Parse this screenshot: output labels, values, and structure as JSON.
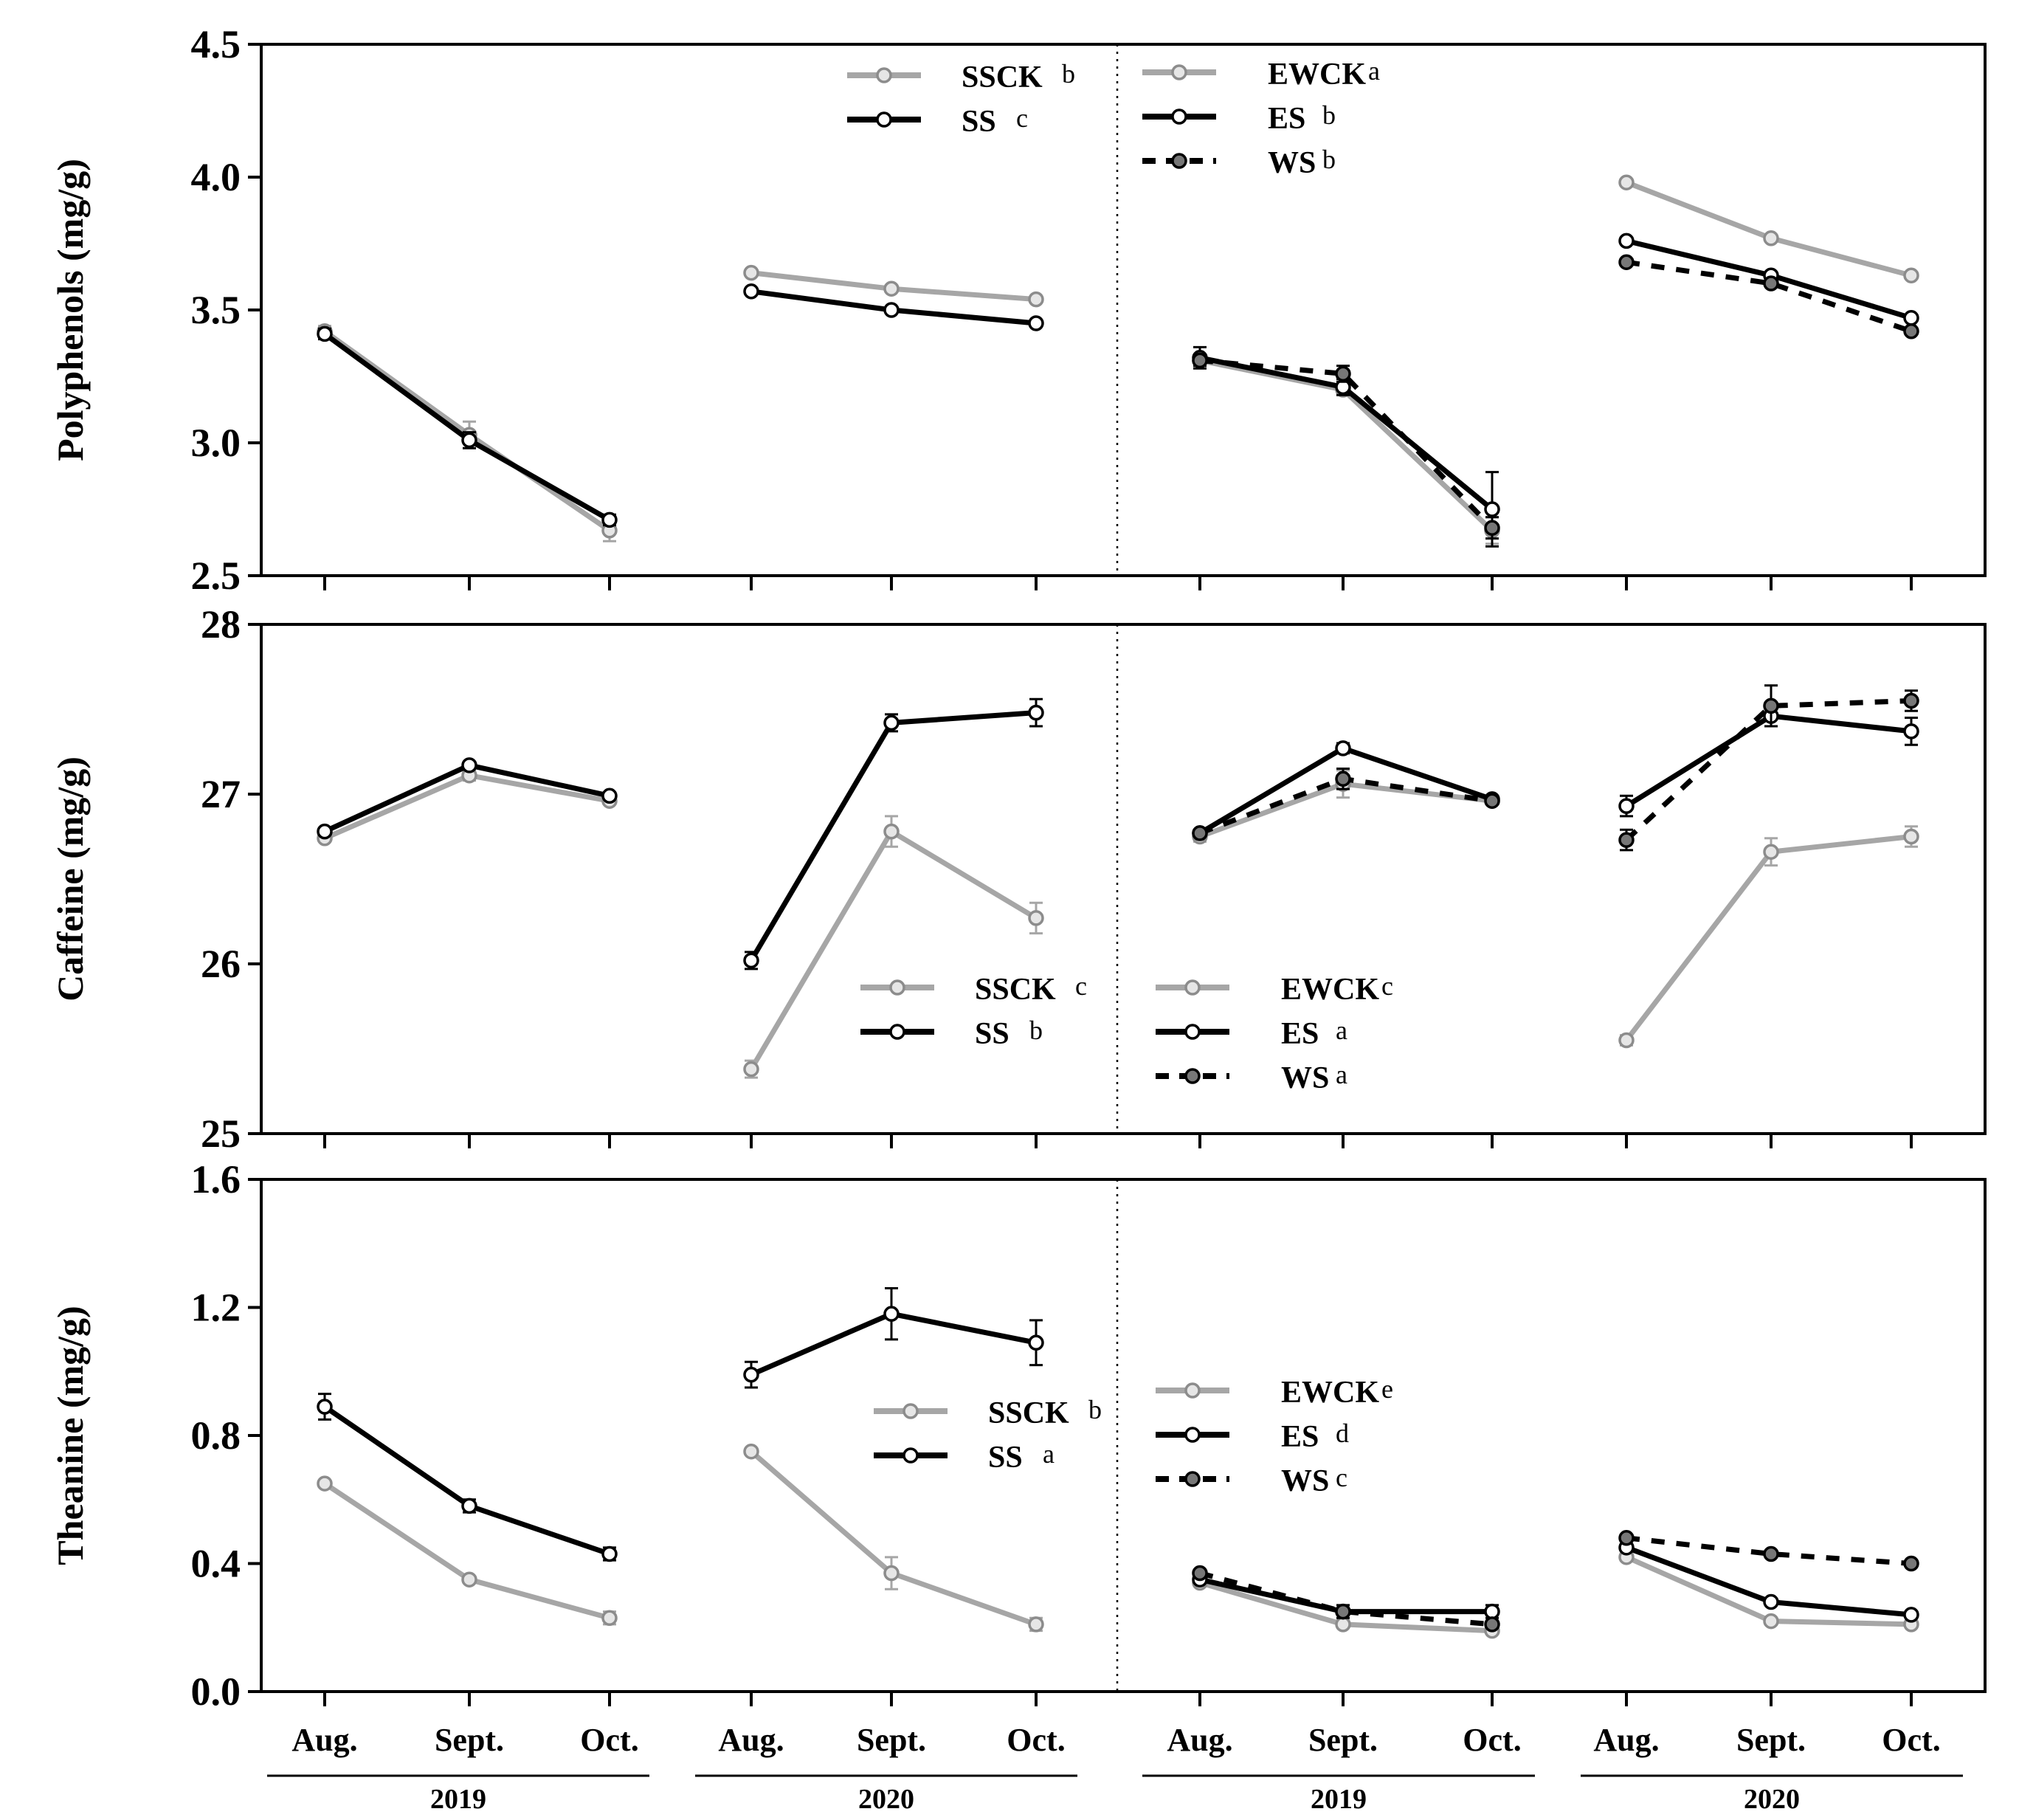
{
  "chart_data": {
    "type": "line",
    "x_categories": [
      "Aug.",
      "Sept.",
      "Oct.",
      "Aug.",
      "Sept.",
      "Oct.",
      "Aug.",
      "Sept.",
      "Oct.",
      "Aug.",
      "Sept.",
      "Oct."
    ],
    "year_groups": [
      "2019",
      "2020",
      "2019",
      "2020"
    ],
    "colors": {
      "gray": "#a6a6a6",
      "black": "#000000",
      "marker_gray": "#8c8c8c"
    },
    "panels": [
      {
        "id": "polyphenols",
        "ylabel": "Polyphenols (mg/g)",
        "ylim": [
          2.5,
          4.5
        ],
        "yticks": [
          2.5,
          3.0,
          3.5,
          4.0,
          4.5
        ],
        "ytick_labels": [
          "2.5",
          "3.0",
          "3.5",
          "4.0",
          "4.5"
        ],
        "series": [
          {
            "name": "SSCK",
            "sig": "b",
            "style": "gray",
            "values": [
              3.42,
              3.03,
              2.67,
              3.64,
              3.58,
              3.54,
              null,
              null,
              null,
              null,
              null,
              null
            ],
            "errors": [
              0.02,
              0.05,
              0.04,
              0.01,
              0.01,
              0.01,
              null,
              null,
              null,
              null,
              null,
              null
            ]
          },
          {
            "name": "SS",
            "sig": "c",
            "style": "black",
            "values": [
              3.41,
              3.01,
              2.71,
              3.57,
              3.5,
              3.45,
              null,
              null,
              null,
              null,
              null,
              null
            ],
            "errors": [
              0.02,
              0.03,
              0.02,
              0.01,
              0.01,
              0.01,
              null,
              null,
              null,
              null,
              null,
              null
            ]
          },
          {
            "name": "EWCK",
            "sig": "a",
            "style": "gray",
            "values": [
              null,
              null,
              null,
              null,
              null,
              null,
              3.31,
              3.2,
              2.67,
              3.98,
              3.77,
              3.63
            ],
            "errors": [
              null,
              null,
              null,
              null,
              null,
              null,
              0.02,
              0.02,
              0.05,
              0.01,
              0.01,
              0.01
            ]
          },
          {
            "name": "ES",
            "sig": "b",
            "style": "black",
            "values": [
              null,
              null,
              null,
              null,
              null,
              null,
              3.32,
              3.21,
              2.75,
              3.76,
              3.63,
              3.47
            ],
            "errors": [
              null,
              null,
              null,
              null,
              null,
              null,
              0.04,
              0.03,
              0.14,
              0.01,
              0.01,
              0.01
            ]
          },
          {
            "name": "WS",
            "sig": "b",
            "style": "dashed",
            "values": [
              null,
              null,
              null,
              null,
              null,
              null,
              3.31,
              3.26,
              2.68,
              3.68,
              3.6,
              3.42
            ],
            "errors": [
              null,
              null,
              null,
              null,
              null,
              null,
              0.02,
              0.03,
              0.04,
              0.01,
              0.01,
              0.01
            ]
          }
        ]
      },
      {
        "id": "caffeine",
        "ylabel": "Caffeine (mg/g)",
        "ylim": [
          25,
          28
        ],
        "yticks": [
          25,
          26,
          27,
          28
        ],
        "ytick_labels": [
          "25",
          "26",
          "27",
          "28"
        ],
        "series": [
          {
            "name": "SSCK",
            "sig": "c",
            "style": "gray",
            "values": [
              26.74,
              27.11,
              26.96,
              25.38,
              26.78,
              26.27,
              null,
              null,
              null,
              null,
              null,
              null
            ],
            "errors": [
              0.02,
              0.03,
              0.02,
              0.05,
              0.09,
              0.09,
              null,
              null,
              null,
              null,
              null,
              null
            ]
          },
          {
            "name": "SS",
            "sig": "b",
            "style": "black",
            "values": [
              26.78,
              27.17,
              26.99,
              26.02,
              27.42,
              27.48,
              null,
              null,
              null,
              null,
              null,
              null
            ],
            "errors": [
              0.02,
              0.02,
              0.02,
              0.05,
              0.05,
              0.08,
              null,
              null,
              null,
              null,
              null,
              null
            ]
          },
          {
            "name": "EWCK",
            "sig": "c",
            "style": "gray",
            "values": [
              null,
              null,
              null,
              null,
              null,
              null,
              26.75,
              27.06,
              26.96,
              25.55,
              26.66,
              26.75
            ],
            "errors": [
              null,
              null,
              null,
              null,
              null,
              null,
              0.03,
              0.08,
              0.02,
              0.03,
              0.08,
              0.06
            ]
          },
          {
            "name": "ES",
            "sig": "a",
            "style": "black",
            "values": [
              null,
              null,
              null,
              null,
              null,
              null,
              26.77,
              27.27,
              26.97,
              26.93,
              27.46,
              27.37
            ],
            "errors": [
              null,
              null,
              null,
              null,
              null,
              null,
              0.02,
              0.03,
              0.02,
              0.06,
              0.06,
              0.08
            ]
          },
          {
            "name": "WS",
            "sig": "a",
            "style": "dashed",
            "values": [
              null,
              null,
              null,
              null,
              null,
              null,
              26.77,
              27.09,
              26.96,
              26.73,
              27.52,
              27.55
            ],
            "errors": [
              null,
              null,
              null,
              null,
              null,
              null,
              0.02,
              0.06,
              0.02,
              0.06,
              0.12,
              0.06
            ]
          }
        ]
      },
      {
        "id": "theanine",
        "ylabel": "Theanine (mg/g)",
        "ylim": [
          0.0,
          1.6
        ],
        "yticks": [
          0.0,
          0.4,
          0.8,
          1.2,
          1.6
        ],
        "ytick_labels": [
          "0.0",
          "0.4",
          "0.8",
          "1.2",
          "1.6"
        ],
        "series": [
          {
            "name": "SSCK",
            "sig": "b",
            "style": "gray",
            "values": [
              0.65,
              0.35,
              0.23,
              0.75,
              0.37,
              0.21,
              null,
              null,
              null,
              null,
              null,
              null
            ],
            "errors": [
              0.01,
              0.01,
              0.02,
              0.01,
              0.05,
              0.02,
              null,
              null,
              null,
              null,
              null,
              null
            ]
          },
          {
            "name": "SS",
            "sig": "a",
            "style": "black",
            "values": [
              0.89,
              0.58,
              0.43,
              0.99,
              1.18,
              1.09,
              null,
              null,
              null,
              null,
              null,
              null
            ],
            "errors": [
              0.04,
              0.02,
              0.02,
              0.04,
              0.08,
              0.07,
              null,
              null,
              null,
              null,
              null,
              null
            ]
          },
          {
            "name": "EWCK",
            "sig": "e",
            "style": "gray",
            "values": [
              null,
              null,
              null,
              null,
              null,
              null,
              0.34,
              0.21,
              0.19,
              0.42,
              0.22,
              0.21
            ],
            "errors": [
              null,
              null,
              null,
              null,
              null,
              null,
              0.01,
              0.01,
              0.01,
              0.01,
              0.01,
              0.01
            ]
          },
          {
            "name": "ES",
            "sig": "d",
            "style": "black",
            "values": [
              null,
              null,
              null,
              null,
              null,
              null,
              0.35,
              0.25,
              0.25,
              0.45,
              0.28,
              0.24
            ],
            "errors": [
              null,
              null,
              null,
              null,
              null,
              null,
              0.01,
              0.02,
              0.02,
              0.01,
              0.01,
              0.01
            ]
          },
          {
            "name": "WS",
            "sig": "c",
            "style": "dashed",
            "values": [
              null,
              null,
              null,
              null,
              null,
              null,
              0.37,
              0.25,
              0.21,
              0.48,
              0.43,
              0.4
            ],
            "errors": [
              null,
              null,
              null,
              null,
              null,
              null,
              0.01,
              0.01,
              0.01,
              0.01,
              0.01,
              0.01
            ]
          }
        ]
      }
    ]
  }
}
